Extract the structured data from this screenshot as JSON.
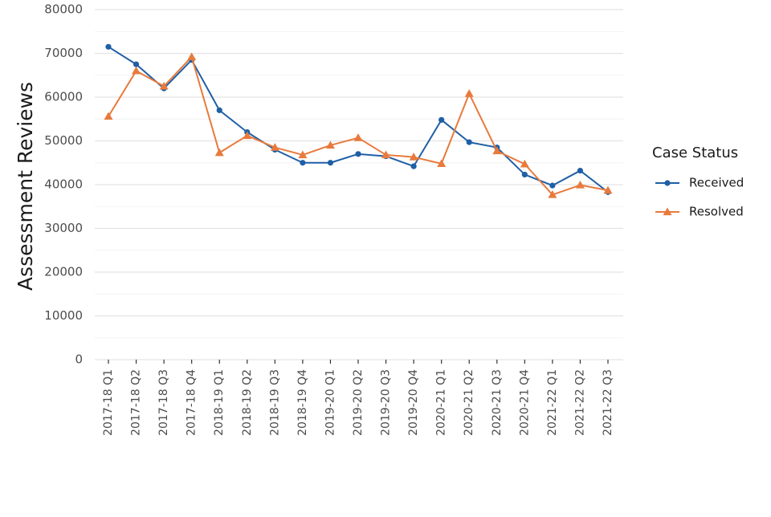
{
  "chart_data": {
    "type": "line",
    "xlabel": "",
    "ylabel": "Assessment Reviews",
    "ylim": [
      0,
      80000
    ],
    "yticks": [
      "0",
      "10000",
      "20000",
      "30000",
      "40000",
      "50000",
      "60000",
      "70000",
      "80000"
    ],
    "grid": true,
    "legend_position": "right",
    "legend_title": "Case Status",
    "categories": [
      "2017-18 Q1",
      "2017-18 Q2",
      "2017-18 Q3",
      "2017-18 Q4",
      "2018-19 Q1",
      "2018-19 Q2",
      "2018-19 Q3",
      "2018-19 Q4",
      "2019-20 Q1",
      "2019-20 Q2",
      "2019-20 Q3",
      "2019-20 Q4",
      "2020-21 Q1",
      "2020-21 Q2",
      "2020-21 Q3",
      "2020-21 Q4",
      "2021-22 Q1",
      "2021-22 Q2",
      "2021-22 Q3"
    ],
    "series": [
      {
        "name": "Received",
        "color": "#1f5fa6",
        "marker": "circle",
        "values": [
          71500,
          67500,
          62000,
          68500,
          57000,
          52000,
          48000,
          45000,
          45000,
          47000,
          46500,
          44200,
          54800,
          49700,
          48500,
          42300,
          39800,
          43200,
          38300
        ]
      },
      {
        "name": "Resolved",
        "color": "#e87a3c",
        "marker": "triangle",
        "values": [
          55600,
          66000,
          62500,
          69200,
          47300,
          51200,
          48500,
          46800,
          49000,
          50700,
          46800,
          46300,
          44800,
          60800,
          47700,
          44700,
          37700,
          39900,
          38700
        ]
      }
    ]
  }
}
